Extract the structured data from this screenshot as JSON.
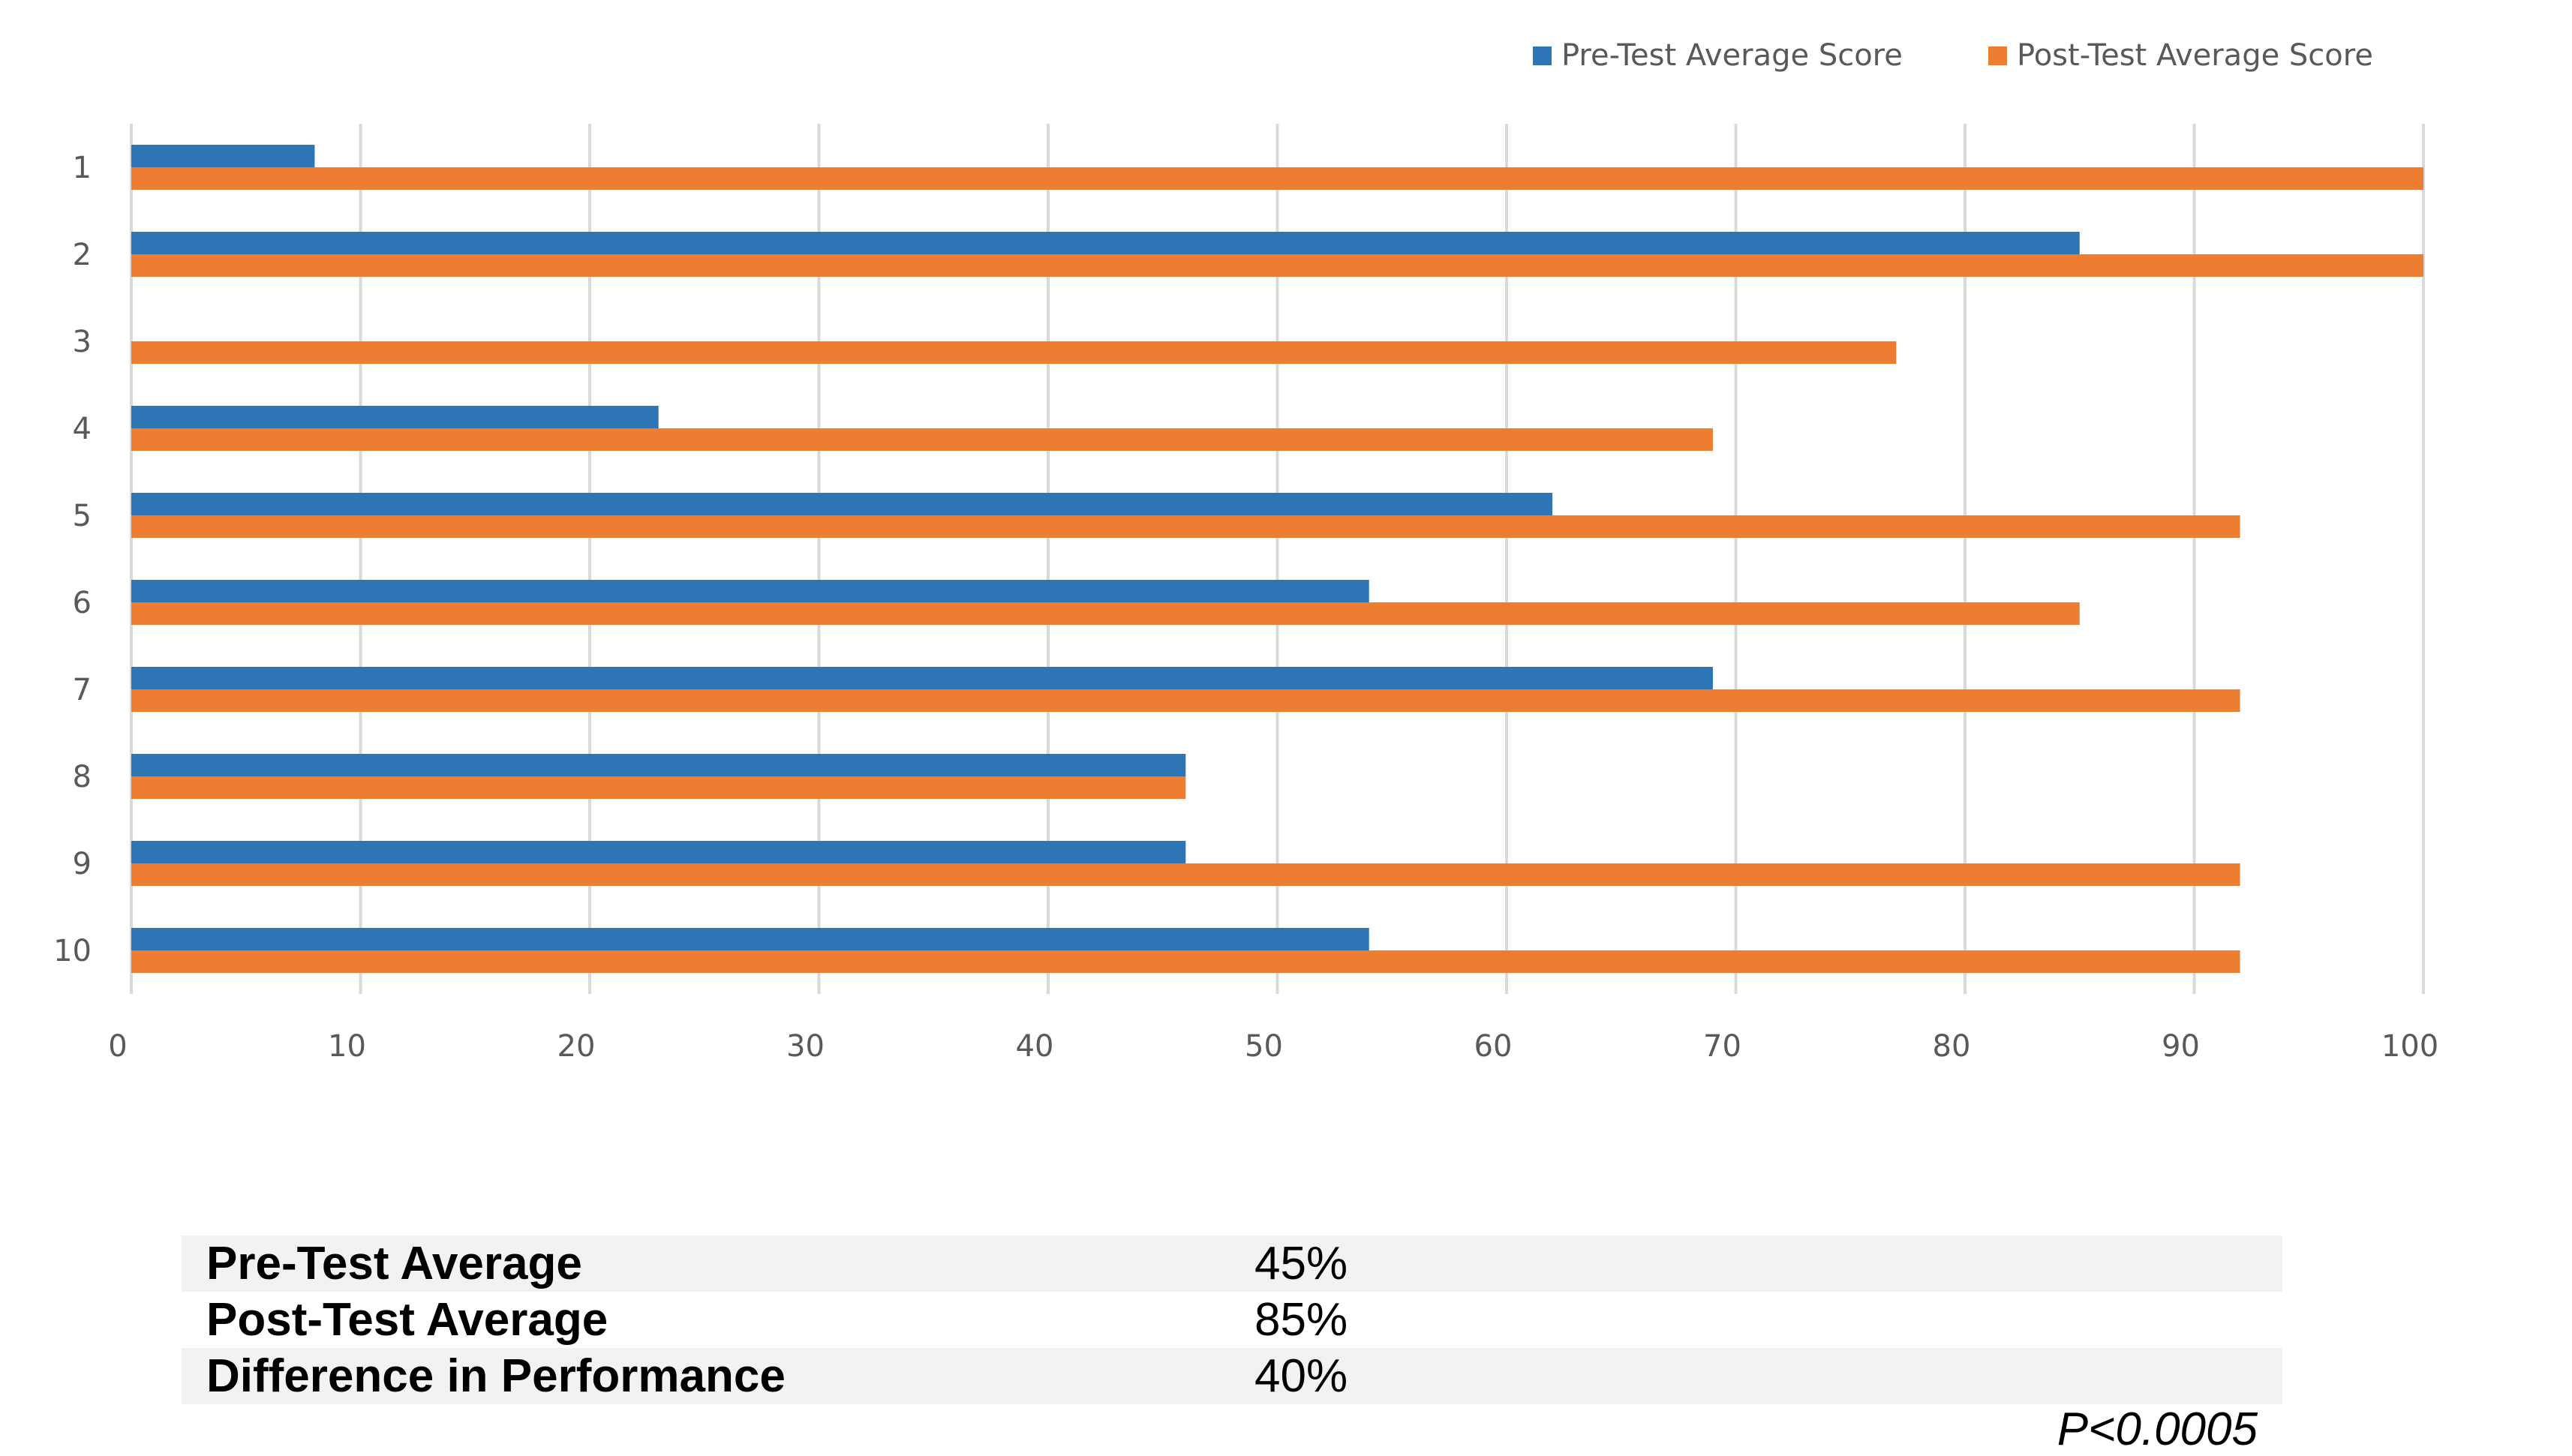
{
  "chart_data": {
    "type": "bar",
    "orientation": "horizontal",
    "categories": [
      "1",
      "2",
      "3",
      "4",
      "5",
      "6",
      "7",
      "8",
      "9",
      "10"
    ],
    "series": [
      {
        "name": "Pre-Test Average Score",
        "color": "#2e75b6",
        "values": [
          8,
          85,
          0,
          23,
          62,
          54,
          69,
          46,
          46,
          54
        ]
      },
      {
        "name": "Post-Test Average Score",
        "color": "#ed7d31",
        "values": [
          100,
          100,
          77,
          69,
          92,
          85,
          92,
          46,
          92,
          92
        ]
      }
    ],
    "x_ticks": [
      "0",
      "10",
      "20",
      "30",
      "40",
      "50",
      "60",
      "70",
      "80",
      "90",
      "100"
    ],
    "xlim": [
      0,
      100
    ],
    "grid": true,
    "legend_position": "top-right"
  },
  "summary_table": [
    {
      "label": "Pre-Test Average",
      "value": "45%"
    },
    {
      "label": "Post-Test Average",
      "value": "85%"
    },
    {
      "label": "Difference in Performance",
      "value": "40%"
    }
  ],
  "p_value": "P<0.0005"
}
